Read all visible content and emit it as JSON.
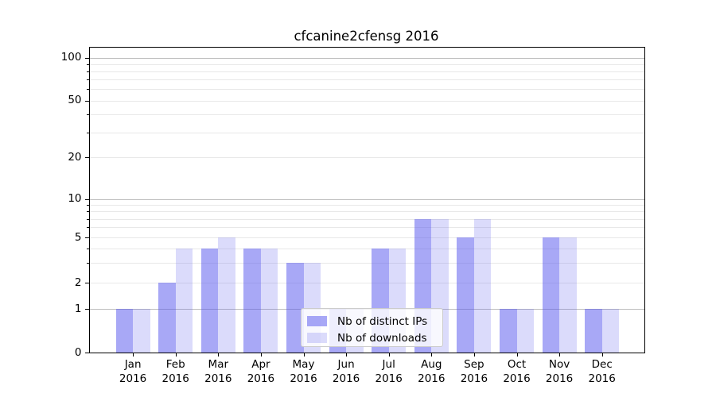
{
  "title": "cfcanine2cfensg 2016",
  "chart_data": {
    "type": "bar",
    "title": "cfcanine2cfensg 2016",
    "categories": [
      "Jan 2016",
      "Feb 2016",
      "Mar 2016",
      "Apr 2016",
      "May 2016",
      "Jun 2016",
      "Jul 2016",
      "Aug 2016",
      "Sep 2016",
      "Oct 2016",
      "Nov 2016",
      "Dec 2016"
    ],
    "series": [
      {
        "name": "Nb of distinct IPs",
        "color": "rgba(85,85,238,0.51)",
        "values": [
          1,
          2,
          4,
          4,
          3,
          1,
          4,
          7,
          5,
          1,
          5,
          1
        ]
      },
      {
        "name": "Nb of downloads",
        "color": "rgba(85,85,238,0.21)",
        "values": [
          1,
          4,
          5,
          4,
          3,
          1,
          4,
          7,
          7,
          1,
          5,
          1
        ]
      }
    ],
    "xlabel": "",
    "ylabel": "",
    "yscale": "log-like (linear 0-1, log above)",
    "ylim": [
      0,
      130
    ],
    "yticks": [
      100,
      50,
      20,
      10,
      5,
      2,
      1,
      0
    ],
    "major_gridlines": [
      1,
      10,
      100
    ],
    "minor_gridlines": [
      2,
      3,
      4,
      5,
      6,
      7,
      8,
      9,
      20,
      30,
      40,
      50,
      60,
      70,
      80,
      90
    ],
    "grid": true,
    "legend_position": "lower center"
  },
  "colors": {
    "background": "#ffffff",
    "spine": "#000000",
    "grid_major": "#bdbdbd",
    "grid_minor": "#e8e8e8",
    "text": "#000000",
    "legend_border": "#cccccc"
  }
}
